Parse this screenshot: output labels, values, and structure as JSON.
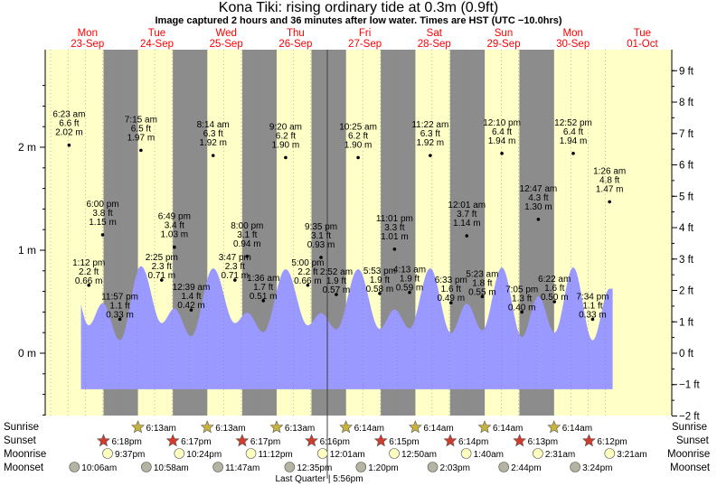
{
  "title": "Kona Tiki: rising  ordinary tide at 0.3m (0.9ft)",
  "subtitle": "Image captured 2 hours and 36 minutes after low water. Times are HST (UTC −10.0hrs)",
  "colors": {
    "day": "#ffffc8",
    "night": "#8c8c8c",
    "water": "#9999ff",
    "date_text": "#ff0000",
    "sun_star": "#c8b43c",
    "sunset_star": "#d03c2c",
    "moonrise": "#ffffc0",
    "moonset": "#b4b4a0"
  },
  "days": [
    {
      "dow": "Mon",
      "date": "23-Sep"
    },
    {
      "dow": "Tue",
      "date": "24-Sep"
    },
    {
      "dow": "Wed",
      "date": "25-Sep"
    },
    {
      "dow": "Thu",
      "date": "26-Sep"
    },
    {
      "dow": "Fri",
      "date": "27-Sep"
    },
    {
      "dow": "Sat",
      "date": "28-Sep"
    },
    {
      "dow": "Sun",
      "date": "29-Sep"
    },
    {
      "dow": "Mon",
      "date": "30-Sep"
    },
    {
      "dow": "Tue",
      "date": "01-Oct"
    }
  ],
  "chart_data": {
    "type": "line",
    "series_description": "tide height over time",
    "x_unit": "hours from 23-Sep 00:00 HST",
    "y_left_ticks": [
      {
        "label": "0 m",
        "value": 0
      },
      {
        "label": "1 m",
        "value": 1
      },
      {
        "label": "2 m",
        "value": 2
      }
    ],
    "y_right_ticks": [
      "9 ft",
      "8 ft",
      "7 ft",
      "6 ft",
      "5 ft",
      "4 ft",
      "3 ft",
      "2 ft",
      "1 ft",
      "0 ft",
      "−1 ft",
      "−2 ft"
    ],
    "y_right_values_ft": [
      9,
      8,
      7,
      6,
      5,
      4,
      3,
      2,
      1,
      0,
      -1,
      -2
    ],
    "ylim_m": [
      -0.6,
      2.9
    ],
    "nights": [
      {
        "start": "23-Sep 18:18",
        "end": "24-Sep 06:13"
      },
      {
        "start": "24-Sep 18:17",
        "end": "25-Sep 06:13"
      },
      {
        "start": "25-Sep 18:17",
        "end": "26-Sep 06:13"
      },
      {
        "start": "26-Sep 18:16",
        "end": "27-Sep 06:14"
      },
      {
        "start": "27-Sep 18:15",
        "end": "28-Sep 06:14"
      },
      {
        "start": "28-Sep 18:14",
        "end": "29-Sep 06:14"
      },
      {
        "start": "29-Sep 18:13",
        "end": "30-Sep 06:14"
      }
    ],
    "tides": [
      {
        "time": "6:23 am",
        "ft": "6.6 ft",
        "m": "2.02 m",
        "h": 6.38,
        "v": 2.02,
        "type": "high"
      },
      {
        "time": "1:12 pm",
        "ft": "2.2 ft",
        "m": "0.66 m",
        "h": 13.2,
        "v": 0.66,
        "type": "low"
      },
      {
        "time": "6:00 pm",
        "ft": "3.8 ft",
        "m": "1.15 m",
        "h": 18.0,
        "v": 1.15,
        "type": "high"
      },
      {
        "time": "11:57 pm",
        "ft": "1.1 ft",
        "m": "0.33 m",
        "h": 23.95,
        "v": 0.33,
        "type": "low"
      },
      {
        "time": "7:15 am",
        "ft": "6.5 ft",
        "m": "1.97 m",
        "h": 31.25,
        "v": 1.97,
        "type": "high"
      },
      {
        "time": "2:25 pm",
        "ft": "2.3 ft",
        "m": "0.71 m",
        "h": 38.42,
        "v": 0.71,
        "type": "low"
      },
      {
        "time": "6:49 pm",
        "ft": "3.4 ft",
        "m": "1.03 m",
        "h": 42.82,
        "v": 1.03,
        "type": "high"
      },
      {
        "time": "12:39 am",
        "ft": "1.4 ft",
        "m": "0.42 m",
        "h": 48.65,
        "v": 0.42,
        "type": "low"
      },
      {
        "time": "8:14 am",
        "ft": "6.3 ft",
        "m": "1.92 m",
        "h": 56.23,
        "v": 1.92,
        "type": "high"
      },
      {
        "time": "3:47 pm",
        "ft": "2.3 ft",
        "m": "0.71 m",
        "h": 63.78,
        "v": 0.71,
        "type": "low"
      },
      {
        "time": "8:00 pm",
        "ft": "3.1 ft",
        "m": "0.94 m",
        "h": 68.0,
        "v": 0.94,
        "type": "high"
      },
      {
        "time": "1:36 am",
        "ft": "1.7 ft",
        "m": "0.51 m",
        "h": 73.6,
        "v": 0.51,
        "type": "low"
      },
      {
        "time": "9:20 am",
        "ft": "6.2 ft",
        "m": "1.90 m",
        "h": 81.33,
        "v": 1.9,
        "type": "high"
      },
      {
        "time": "5:00 pm",
        "ft": "2.2 ft",
        "m": "0.66 m",
        "h": 89.0,
        "v": 0.66,
        "type": "low"
      },
      {
        "time": "9:35 pm",
        "ft": "3.1 ft",
        "m": "0.93 m",
        "h": 93.58,
        "v": 0.93,
        "type": "high"
      },
      {
        "time": "2:52 am",
        "ft": "1.9 ft",
        "m": "0.57 m",
        "h": 98.87,
        "v": 0.57,
        "type": "low"
      },
      {
        "time": "10:25 am",
        "ft": "6.2 ft",
        "m": "1.90 m",
        "h": 106.42,
        "v": 1.9,
        "type": "high"
      },
      {
        "time": "5:53 pm",
        "ft": "1.9 ft",
        "m": "0.58 m",
        "h": 113.88,
        "v": 0.58,
        "type": "low"
      },
      {
        "time": "11:01 pm",
        "ft": "3.3 ft",
        "m": "1.01 m",
        "h": 119.02,
        "v": 1.01,
        "type": "high"
      },
      {
        "time": "4:13 am",
        "ft": "1.9 ft",
        "m": "0.59 m",
        "h": 124.22,
        "v": 0.59,
        "type": "low"
      },
      {
        "time": "11:22 am",
        "ft": "6.3 ft",
        "m": "1.92 m",
        "h": 131.37,
        "v": 1.92,
        "type": "high"
      },
      {
        "time": "6:33 pm",
        "ft": "1.6 ft",
        "m": "0.49 m",
        "h": 138.55,
        "v": 0.49,
        "type": "low"
      },
      {
        "time": "12:01 am",
        "ft": "3.7 ft",
        "m": "1.14 m",
        "h": 144.02,
        "v": 1.14,
        "type": "high"
      },
      {
        "time": "5:23 am",
        "ft": "1.8 ft",
        "m": "0.55 m",
        "h": 149.38,
        "v": 0.55,
        "type": "low"
      },
      {
        "time": "12:10 pm",
        "ft": "6.4 ft",
        "m": "1.94 m",
        "h": 156.17,
        "v": 1.94,
        "type": "high"
      },
      {
        "time": "7:05 pm",
        "ft": "1.3 ft",
        "m": "0.40 m",
        "h": 163.08,
        "v": 0.4,
        "type": "low"
      },
      {
        "time": "12:47 am",
        "ft": "4.3 ft",
        "m": "1.30 m",
        "h": 168.78,
        "v": 1.3,
        "type": "high"
      },
      {
        "time": "6:22 am",
        "ft": "1.6 ft",
        "m": "0.50 m",
        "h": 174.37,
        "v": 0.5,
        "type": "low"
      },
      {
        "time": "12:52 pm",
        "ft": "6.4 ft",
        "m": "1.94 m",
        "h": 180.87,
        "v": 1.94,
        "type": "high"
      },
      {
        "time": "7:34 pm",
        "ft": "1.1 ft",
        "m": "0.33 m",
        "h": 187.57,
        "v": 0.33,
        "type": "low"
      },
      {
        "time": "1:26 am",
        "ft": "4.8 ft",
        "m": "1.47 m",
        "h": 193.43,
        "v": 1.47,
        "type": "high"
      }
    ]
  },
  "legend_labels": {
    "sunrise": "Sunrise",
    "sunset": "Sunset",
    "moonrise": "Moonrise",
    "moonset": "Moonset"
  },
  "sunrise_times": [
    "6:13am",
    "6:13am",
    "6:13am",
    "6:14am",
    "6:14am",
    "6:14am",
    "6:14am"
  ],
  "sunset_times": [
    "6:18pm",
    "6:17pm",
    "6:17pm",
    "6:16pm",
    "6:15pm",
    "6:14pm",
    "6:13pm",
    "6:12pm"
  ],
  "moonrise_times": [
    "9:37pm",
    "10:24pm",
    "11:12pm",
    "12:01am",
    "12:50am",
    "1:40am",
    "2:31am",
    "3:21am"
  ],
  "moonset_times": [
    "10:06am",
    "10:58am",
    "11:47am",
    "12:35pm",
    "1:20pm",
    "2:03pm",
    "2:44pm",
    "3:24pm"
  ],
  "moon_phase_note": "Last Quarter | 5:56pm"
}
